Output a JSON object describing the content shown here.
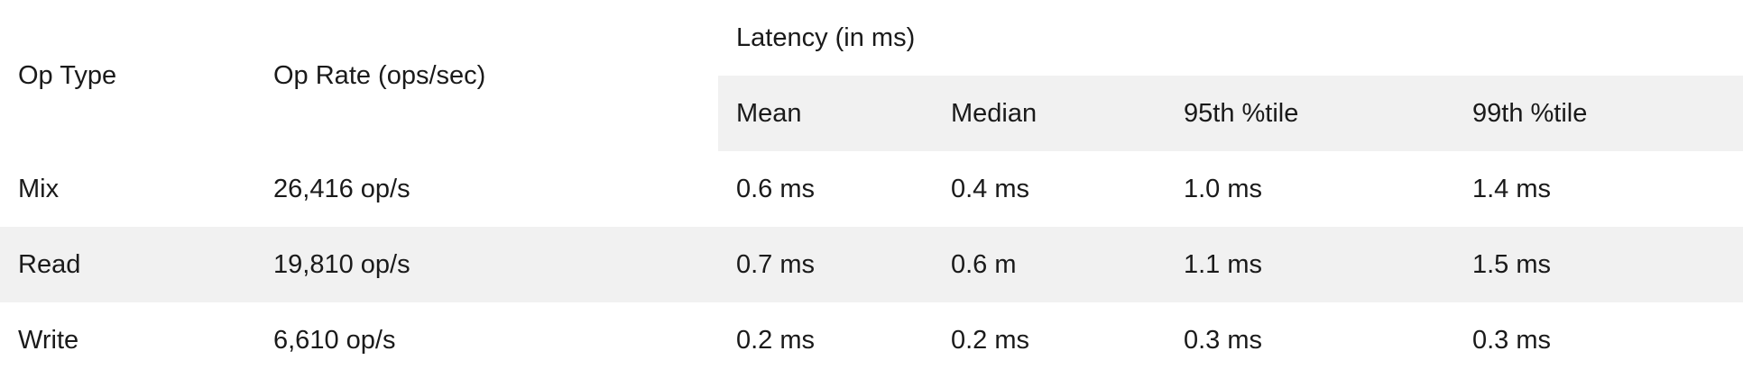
{
  "headers": {
    "op_type": "Op Type",
    "op_rate": "Op Rate (ops/sec)",
    "latency_group": "Latency (in ms)",
    "mean": "Mean",
    "median": "Median",
    "p95": "95th %tile",
    "p99": "99th %tile"
  },
  "rows": [
    {
      "op_type": "Mix",
      "op_rate": "26,416 op/s",
      "mean": "0.6 ms",
      "median": "0.4 ms",
      "p95": "1.0 ms",
      "p99": "1.4 ms"
    },
    {
      "op_type": "Read",
      "op_rate": "19,810 op/s",
      "mean": "0.7 ms",
      "median": "0.6 m",
      "p95": "1.1 ms",
      "p99": "1.5 ms"
    },
    {
      "op_type": "Write",
      "op_rate": "6,610 op/s",
      "mean": "0.2 ms",
      "median": "0.2 ms",
      "p95": "0.3 ms",
      "p99": "0.3 ms"
    }
  ],
  "colors": {
    "shade": "#f1f1f1",
    "text": "#1a1a1a"
  }
}
